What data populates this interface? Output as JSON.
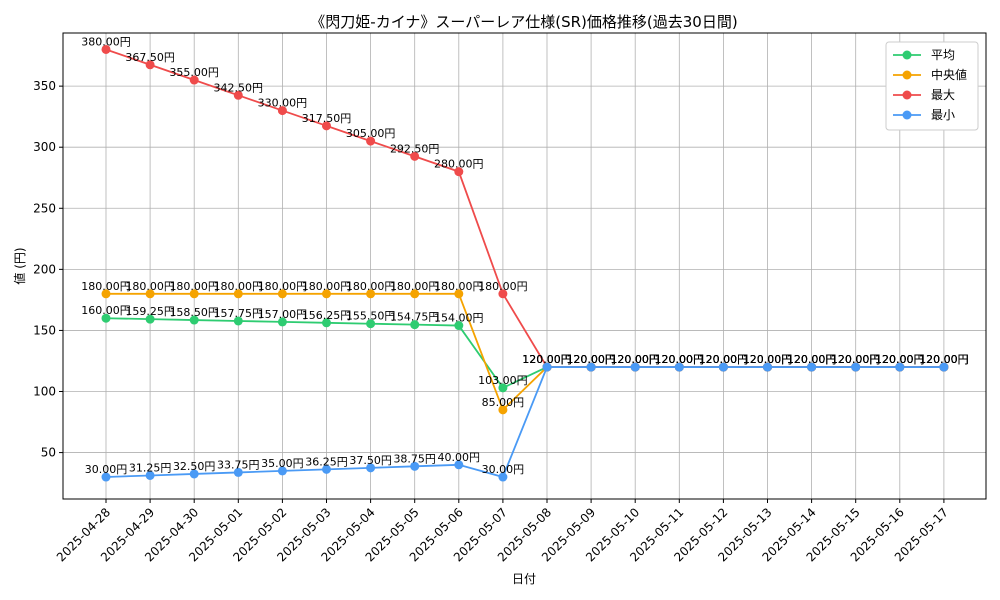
{
  "chart_data": {
    "type": "line",
    "title": "《閃刀姫-カイナ》スーパーレア仕様(SR)価格推移(過去30日間)",
    "xlabel": "日付",
    "ylabel": "値 (円)",
    "ylim": [
      12,
      393.5
    ],
    "yticks": [
      50,
      100,
      150,
      200,
      250,
      300,
      350
    ],
    "grid": true,
    "legend_position": "top-right",
    "categories": [
      "2025-04-28",
      "2025-04-29",
      "2025-04-30",
      "2025-05-01",
      "2025-05-02",
      "2025-05-03",
      "2025-05-04",
      "2025-05-05",
      "2025-05-06",
      "2025-05-07",
      "2025-05-08",
      "2025-05-09",
      "2025-05-10",
      "2025-05-11",
      "2025-05-12",
      "2025-05-13",
      "2025-05-14",
      "2025-05-15",
      "2025-05-16",
      "2025-05-17"
    ],
    "series": [
      {
        "name": "平均",
        "color": "#2ecc71",
        "values": [
          160,
          159.25,
          158.5,
          157.75,
          157,
          156.25,
          155.5,
          154.75,
          154,
          103,
          120,
          120,
          120,
          120,
          120,
          120,
          120,
          120,
          120,
          120
        ],
        "labels": [
          "160.00円",
          "159.25円",
          "158.50円",
          "157.75円",
          "157.00円",
          "156.25円",
          "155.50円",
          "154.75円",
          "154.00円",
          "103.00円",
          "120.00円",
          "120.00円",
          "120.00円",
          "120.00円",
          "120.00円",
          "120.00円",
          "120.00円",
          "120.00円",
          "120.00円",
          "120.00円"
        ]
      },
      {
        "name": "中央値",
        "color": "#f5a300",
        "values": [
          180,
          180,
          180,
          180,
          180,
          180,
          180,
          180,
          180,
          85,
          120,
          120,
          120,
          120,
          120,
          120,
          120,
          120,
          120,
          120
        ],
        "labels": [
          "180.00円",
          "180.00円",
          "180.00円",
          "180.00円",
          "180.00円",
          "180.00円",
          "180.00円",
          "180.00円",
          "180.00円",
          "85.00円",
          "120.00円",
          "120.00円",
          "120.00円",
          "120.00円",
          "120.00円",
          "120.00円",
          "120.00円",
          "120.00円",
          "120.00円",
          "120.00円"
        ]
      },
      {
        "name": "最大",
        "color": "#ef4b4b",
        "values": [
          380,
          367.5,
          355,
          342.5,
          330,
          317.5,
          305,
          292.5,
          280,
          180,
          120,
          120,
          120,
          120,
          120,
          120,
          120,
          120,
          120,
          120
        ],
        "labels": [
          "380.00円",
          "367.50円",
          "355.00円",
          "342.50円",
          "330.00円",
          "317.50円",
          "305.00円",
          "292.50円",
          "280.00円",
          "180.00円",
          "120.00円",
          "120.00円",
          "120.00円",
          "120.00円",
          "120.00円",
          "120.00円",
          "120.00円",
          "120.00円",
          "120.00円",
          "120.00円"
        ]
      },
      {
        "name": "最小",
        "color": "#4a9af5",
        "values": [
          30,
          31.25,
          32.5,
          33.75,
          35,
          36.25,
          37.5,
          38.75,
          40,
          30,
          120,
          120,
          120,
          120,
          120,
          120,
          120,
          120,
          120,
          120
        ],
        "labels": [
          "30.00円",
          "31.25円",
          "32.50円",
          "33.75円",
          "35.00円",
          "36.25円",
          "37.50円",
          "38.75円",
          "40.00円",
          "30.00円",
          "120.00円",
          "120.00円",
          "120.00円",
          "120.00円",
          "120.00円",
          "120.00円",
          "120.00円",
          "120.00円",
          "120.00円",
          "120.00円"
        ]
      }
    ]
  }
}
